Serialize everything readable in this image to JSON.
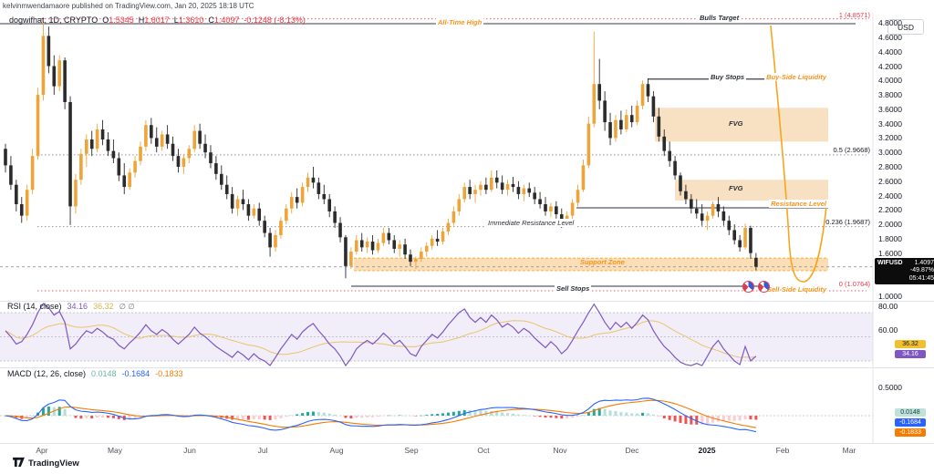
{
  "header": {
    "attribution": "kelvinmwendamaore published on TradingView.com, Jan 20, 2025 18:18 UTC",
    "currency_button": "USD"
  },
  "symbol_row": {
    "name": "dogwifhat, 1D, CRYPTO",
    "o_label": "O",
    "o": "1.5345",
    "h_label": "H",
    "h": "1.6017",
    "l_label": "L",
    "l": "1.3610",
    "c_label": "C",
    "c": "1.4097",
    "change": "-0.1248 (-8.13%)"
  },
  "annotations": {
    "all_time_high": "All-Time High",
    "bulls_target": "Bulls Target",
    "buy_stops": "Buy Stops",
    "buy_side_liquidity": "Buy-Side Liquidity",
    "fvg_upper": "FVG",
    "fvg_lower": "FVG",
    "resistance_level": "Resistance Level",
    "immediate_resistance_level": "Immediate Resistance Level",
    "support_zone": "Support Zone",
    "sell_stops": "Sell Stops",
    "sell_side_liquidity": "Sell-Side Liquidity"
  },
  "price_badge": {
    "symbol": "WIFUSD",
    "price": "1.4097",
    "change_pct": "-49.87%",
    "countdown": "05:41:45"
  },
  "rsi_panel": {
    "title": "RSI (14, close)",
    "value_main": "34.16",
    "value_ma": "36.32",
    "empty_markers": "∅ ∅",
    "scale_labels": [
      "80.00",
      "60.00"
    ],
    "badge_ma": "36.32",
    "badge_main": "34.16"
  },
  "macd_panel": {
    "title": "MACD (12, 26, close)",
    "value_hist": "0.0148",
    "value_macd": "-0.1684",
    "value_signal": "-0.1833",
    "scale_label": "0.5000",
    "badge_hist": "0.0148",
    "badge_macd": "-0.1684",
    "badge_signal": "-0.1833"
  },
  "footer": {
    "brand": "TradingView"
  },
  "colors": {
    "candle_up": "#efa43a",
    "candle_down": "#2b2b2b",
    "drawing_orange": "#f7a51d",
    "fib_red": "#f23645",
    "rsi_line": "#7e57c2",
    "rsi_ma": "#e9c46a",
    "macd_line": "#2962ff",
    "macd_signal": "#f57c00",
    "hist_pos": "#26a69a",
    "hist_pos_light": "#b2dfdb",
    "hist_neg": "#ef5350",
    "hist_neg_light": "#fccbcd",
    "zone_fill": "#f7dcb8",
    "support_fill": "rgba(244,166,62,0.38)"
  },
  "chart_data": {
    "type": "candlestick",
    "symbol": "WIFUSD",
    "timeframe": "1D",
    "x_axis_labels": [
      "Apr",
      "May",
      "Jun",
      "Jul",
      "Aug",
      "Sep",
      "Oct",
      "Nov",
      "Dec",
      "2025",
      "Feb",
      "Mar"
    ],
    "y_axis_ticks": [
      4.8,
      4.6,
      4.4,
      4.2,
      4.0,
      3.8,
      3.6,
      3.4,
      3.2,
      3.0,
      2.8,
      2.6,
      2.4,
      2.2,
      2.0,
      1.8,
      1.6,
      1.0
    ],
    "y_axis_range": [
      1.0,
      4.9
    ],
    "current_price": 1.4097,
    "fib_levels": [
      {
        "label": "1 (4.8571)",
        "price": 4.8571,
        "style": "red"
      },
      {
        "label": "0.5 (2.9668)",
        "price": 2.9668,
        "style": "gray"
      },
      {
        "label": "0.236 (1.9687)",
        "price": 1.9687,
        "style": "gray"
      },
      {
        "label": "0 (1.0764)",
        "price": 1.0764,
        "style": "red"
      }
    ],
    "lines": {
      "all_time_high_price": 4.79,
      "buy_stops_price": 4.02,
      "resistance_price": 2.23,
      "sell_stops_price": 1.14
    },
    "zones": {
      "fvg_upper_prices": [
        3.15,
        3.62
      ],
      "fvg_lower_prices": [
        2.33,
        2.62
      ],
      "support_prices": [
        1.355,
        1.53
      ]
    },
    "candles": [
      [
        3.05,
        3.12,
        2.72,
        2.82
      ],
      [
        2.82,
        2.95,
        2.48,
        2.55
      ],
      [
        2.55,
        2.62,
        2.18,
        2.28
      ],
      [
        2.28,
        2.38,
        2.02,
        2.12
      ],
      [
        2.12,
        2.55,
        2.05,
        2.48
      ],
      [
        2.48,
        3.05,
        2.42,
        2.95
      ],
      [
        2.95,
        3.9,
        2.9,
        3.8
      ],
      [
        3.8,
        4.86,
        3.72,
        4.62
      ],
      [
        4.62,
        4.75,
        4.1,
        4.2
      ],
      [
        4.2,
        4.35,
        3.8,
        3.92
      ],
      [
        3.92,
        4.35,
        3.85,
        4.28
      ],
      [
        4.28,
        4.32,
        3.6,
        3.7
      ],
      [
        3.7,
        3.78,
        1.99,
        2.25
      ],
      [
        2.25,
        2.7,
        2.15,
        2.62
      ],
      [
        2.62,
        3.05,
        2.55,
        2.98
      ],
      [
        2.98,
        3.25,
        2.8,
        3.18
      ],
      [
        3.18,
        3.3,
        2.95,
        3.05
      ],
      [
        3.05,
        3.4,
        3.0,
        3.32
      ],
      [
        3.32,
        3.45,
        3.1,
        3.18
      ],
      [
        3.18,
        3.28,
        2.95,
        3.02
      ],
      [
        3.02,
        3.18,
        2.85,
        2.92
      ],
      [
        2.92,
        3.0,
        2.6,
        2.68
      ],
      [
        2.68,
        2.85,
        2.42,
        2.52
      ],
      [
        2.52,
        2.78,
        2.48,
        2.72
      ],
      [
        2.72,
        2.95,
        2.65,
        2.88
      ],
      [
        2.88,
        3.15,
        2.82,
        3.08
      ],
      [
        3.08,
        3.45,
        3.02,
        3.38
      ],
      [
        3.38,
        3.48,
        3.12,
        3.2
      ],
      [
        3.2,
        3.35,
        3.0,
        3.08
      ],
      [
        3.08,
        3.3,
        3.02,
        3.25
      ],
      [
        3.25,
        3.38,
        3.05,
        3.12
      ],
      [
        3.12,
        3.22,
        2.88,
        2.95
      ],
      [
        2.95,
        3.05,
        2.72,
        2.8
      ],
      [
        2.8,
        2.98,
        2.7,
        2.92
      ],
      [
        2.92,
        3.1,
        2.85,
        3.05
      ],
      [
        3.05,
        3.38,
        3.0,
        3.3
      ],
      [
        3.3,
        3.4,
        3.05,
        3.12
      ],
      [
        3.12,
        3.25,
        2.92,
        3.0
      ],
      [
        3.0,
        3.1,
        2.78,
        2.85
      ],
      [
        2.85,
        2.95,
        2.62,
        2.7
      ],
      [
        2.7,
        2.82,
        2.48,
        2.55
      ],
      [
        2.55,
        2.68,
        2.35,
        2.42
      ],
      [
        2.42,
        2.52,
        2.15,
        2.22
      ],
      [
        2.22,
        2.4,
        2.12,
        2.35
      ],
      [
        2.35,
        2.48,
        2.2,
        2.28
      ],
      [
        2.28,
        2.35,
        2.05,
        2.12
      ],
      [
        2.12,
        2.28,
        2.08,
        2.22
      ],
      [
        2.22,
        2.3,
        1.98,
        2.05
      ],
      [
        2.05,
        2.12,
        1.82,
        1.88
      ],
      [
        1.88,
        1.95,
        1.55,
        1.68
      ],
      [
        1.68,
        1.92,
        1.62,
        1.85
      ],
      [
        1.85,
        2.1,
        1.8,
        2.05
      ],
      [
        2.05,
        2.28,
        2.0,
        2.22
      ],
      [
        2.22,
        2.45,
        2.15,
        2.38
      ],
      [
        2.38,
        2.5,
        2.22,
        2.3
      ],
      [
        2.3,
        2.58,
        2.25,
        2.52
      ],
      [
        2.52,
        2.72,
        2.45,
        2.65
      ],
      [
        2.65,
        2.8,
        2.5,
        2.58
      ],
      [
        2.58,
        2.65,
        2.35,
        2.42
      ],
      [
        2.42,
        2.55,
        2.28,
        2.35
      ],
      [
        2.35,
        2.42,
        2.1,
        2.18
      ],
      [
        2.18,
        2.25,
        1.95,
        2.02
      ],
      [
        2.02,
        2.1,
        1.75,
        1.82
      ],
      [
        1.82,
        1.85,
        1.25,
        1.42
      ],
      [
        1.42,
        1.68,
        1.38,
        1.62
      ],
      [
        1.62,
        1.85,
        1.58,
        1.78
      ],
      [
        1.78,
        1.88,
        1.62,
        1.68
      ],
      [
        1.68,
        1.82,
        1.6,
        1.76
      ],
      [
        1.76,
        1.85,
        1.58,
        1.64
      ],
      [
        1.64,
        1.8,
        1.6,
        1.74
      ],
      [
        1.74,
        1.95,
        1.7,
        1.88
      ],
      [
        1.88,
        1.95,
        1.72,
        1.78
      ],
      [
        1.78,
        1.85,
        1.6,
        1.66
      ],
      [
        1.66,
        1.78,
        1.55,
        1.72
      ],
      [
        1.72,
        1.8,
        1.52,
        1.58
      ],
      [
        1.58,
        1.65,
        1.42,
        1.48
      ],
      [
        1.48,
        1.55,
        1.38,
        1.52
      ],
      [
        1.52,
        1.68,
        1.48,
        1.62
      ],
      [
        1.62,
        1.75,
        1.55,
        1.7
      ],
      [
        1.7,
        1.85,
        1.65,
        1.8
      ],
      [
        1.8,
        1.92,
        1.7,
        1.76
      ],
      [
        1.76,
        1.95,
        1.72,
        1.9
      ],
      [
        1.9,
        2.08,
        1.85,
        2.02
      ],
      [
        2.02,
        2.25,
        1.98,
        2.18
      ],
      [
        2.18,
        2.42,
        2.12,
        2.35
      ],
      [
        2.35,
        2.58,
        2.3,
        2.52
      ],
      [
        2.52,
        2.62,
        2.35,
        2.42
      ],
      [
        2.42,
        2.55,
        2.3,
        2.48
      ],
      [
        2.48,
        2.6,
        2.4,
        2.55
      ],
      [
        2.55,
        2.65,
        2.42,
        2.48
      ],
      [
        2.48,
        2.75,
        2.45,
        2.65
      ],
      [
        2.65,
        2.75,
        2.5,
        2.58
      ],
      [
        2.58,
        2.68,
        2.42,
        2.48
      ],
      [
        2.48,
        2.62,
        2.4,
        2.56
      ],
      [
        2.56,
        2.66,
        2.45,
        2.52
      ],
      [
        2.52,
        2.6,
        2.35,
        2.42
      ],
      [
        2.42,
        2.55,
        2.32,
        2.5
      ],
      [
        2.5,
        2.58,
        2.38,
        2.44
      ],
      [
        2.44,
        2.52,
        2.28,
        2.35
      ],
      [
        2.35,
        2.45,
        2.22,
        2.28
      ],
      [
        2.28,
        2.38,
        2.12,
        2.18
      ],
      [
        2.18,
        2.3,
        2.1,
        2.25
      ],
      [
        2.25,
        2.32,
        2.08,
        2.14
      ],
      [
        2.14,
        2.22,
        1.95,
        2.05
      ],
      [
        2.05,
        2.18,
        1.98,
        2.12
      ],
      [
        2.12,
        2.35,
        2.08,
        2.3
      ],
      [
        2.3,
        2.55,
        2.25,
        2.48
      ],
      [
        2.48,
        2.9,
        2.45,
        2.82
      ],
      [
        2.82,
        3.5,
        2.78,
        3.4
      ],
      [
        3.4,
        4.68,
        3.35,
        3.95
      ],
      [
        3.95,
        4.3,
        3.6,
        3.72
      ],
      [
        3.72,
        3.85,
        3.3,
        3.42
      ],
      [
        3.42,
        3.55,
        3.1,
        3.2
      ],
      [
        3.2,
        3.52,
        3.15,
        3.45
      ],
      [
        3.45,
        3.58,
        3.25,
        3.32
      ],
      [
        3.32,
        3.6,
        3.28,
        3.52
      ],
      [
        3.52,
        3.65,
        3.35,
        3.42
      ],
      [
        3.42,
        3.72,
        3.38,
        3.65
      ],
      [
        3.65,
        4.0,
        3.6,
        3.95
      ],
      [
        3.95,
        4.03,
        3.7,
        3.78
      ],
      [
        3.78,
        3.85,
        3.42,
        3.5
      ],
      [
        3.5,
        3.62,
        3.15,
        3.22
      ],
      [
        3.22,
        3.32,
        2.95,
        3.02
      ],
      [
        3.02,
        3.15,
        2.8,
        2.88
      ],
      [
        2.88,
        2.95,
        2.62,
        2.68
      ],
      [
        2.68,
        2.72,
        2.4,
        2.46
      ],
      [
        2.46,
        2.55,
        2.28,
        2.35
      ],
      [
        2.35,
        2.42,
        2.15,
        2.22
      ],
      [
        2.22,
        2.35,
        2.08,
        2.15
      ],
      [
        2.15,
        2.28,
        1.98,
        2.05
      ],
      [
        2.05,
        2.18,
        1.92,
        2.12
      ],
      [
        2.12,
        2.32,
        2.08,
        2.28
      ],
      [
        2.28,
        2.38,
        2.1,
        2.18
      ],
      [
        2.18,
        2.25,
        1.98,
        2.05
      ],
      [
        2.05,
        2.12,
        1.85,
        1.92
      ],
      [
        1.92,
        2.0,
        1.72,
        1.78
      ],
      [
        1.78,
        1.85,
        1.62,
        1.68
      ],
      [
        1.68,
        2.01,
        1.65,
        1.95
      ],
      [
        1.95,
        1.98,
        1.52,
        1.6
      ],
      [
        1.5345,
        1.6017,
        1.361,
        1.4097
      ]
    ],
    "rsi": {
      "period": 14,
      "ma_period": 14,
      "band_levels": [
        70,
        50,
        30
      ],
      "values": [
        55,
        50,
        44,
        46,
        52,
        60,
        70,
        78,
        74,
        68,
        71,
        62,
        40,
        44,
        50,
        55,
        53,
        57,
        54,
        50,
        48,
        43,
        40,
        45,
        49,
        54,
        60,
        55,
        52,
        56,
        53,
        48,
        44,
        48,
        52,
        58,
        53,
        50,
        46,
        42,
        39,
        36,
        33,
        38,
        35,
        31,
        36,
        32,
        30,
        26,
        33,
        40,
        46,
        52,
        48,
        54,
        58,
        61,
        55,
        50,
        44,
        40,
        34,
        25,
        32,
        40,
        44,
        47,
        44,
        48,
        53,
        49,
        44,
        47,
        42,
        36,
        34,
        42,
        47,
        52,
        49,
        54,
        60,
        65,
        70,
        73,
        66,
        62,
        66,
        62,
        68,
        64,
        58,
        61,
        58,
        53,
        57,
        54,
        49,
        45,
        41,
        46,
        42,
        36,
        40,
        47,
        55,
        62,
        70,
        77,
        70,
        62,
        56,
        62,
        58,
        62,
        57,
        62,
        68,
        64,
        55,
        48,
        42,
        38,
        33,
        29,
        27,
        25,
        28,
        26,
        34,
        42,
        47,
        40,
        35,
        30,
        27,
        42,
        30,
        34
      ]
    },
    "macd": {
      "fast": 12,
      "slow": 26,
      "signal_period": 9,
      "current": {
        "histogram": 0.0148,
        "macd": -0.1684,
        "signal": -0.1833
      }
    }
  }
}
